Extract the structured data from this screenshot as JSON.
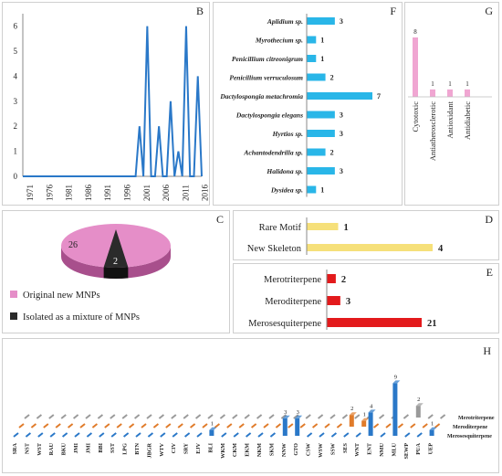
{
  "chart_data": [
    {
      "panel": "B",
      "type": "line",
      "x": [
        1971,
        1972,
        1973,
        1974,
        1975,
        1976,
        1977,
        1978,
        1979,
        1980,
        1981,
        1982,
        1983,
        1984,
        1985,
        1986,
        1987,
        1988,
        1989,
        1990,
        1991,
        1992,
        1993,
        1994,
        1995,
        1996,
        1997,
        1998,
        1999,
        2000,
        2001,
        2002,
        2003,
        2004,
        2005,
        2006,
        2007,
        2008,
        2009,
        2010,
        2011,
        2012,
        2013,
        2014,
        2015,
        2016,
        2017
      ],
      "values": [
        0,
        0,
        0,
        0,
        0,
        0,
        0,
        0,
        0,
        0,
        0,
        0,
        0,
        0,
        0,
        0,
        0,
        0,
        0,
        0,
        0,
        0,
        0,
        0,
        0,
        0,
        0,
        0,
        0,
        0,
        2,
        0,
        6,
        0,
        0,
        2,
        0,
        0,
        3,
        0,
        1,
        0,
        6,
        0,
        0,
        4,
        0
      ],
      "xticks": [
        "1971",
        "1976",
        "1981",
        "1986",
        "1991",
        "1996",
        "2001",
        "2006",
        "2011",
        "2016"
      ],
      "yticks": [
        "0",
        "1",
        "2",
        "3",
        "4",
        "5",
        "6"
      ],
      "ylim": [
        0,
        6.5
      ],
      "color": "#2a78c8"
    },
    {
      "panel": "F",
      "type": "bar",
      "orientation": "horizontal",
      "categories": [
        "Aplidium sp.",
        "Myrothecium sp.",
        "Penicillium citreonigrum",
        "Penicillium verruculosum",
        "Dactylospongia metachromia",
        "Dactylospongia elegans",
        "Hyrtios sp.",
        "Achantodendrilla sp.",
        "Halidona sp.",
        "Dysidea sp."
      ],
      "values": [
        3,
        1,
        1,
        2,
        7,
        3,
        3,
        2,
        3,
        1
      ],
      "color": "#29b6e8"
    },
    {
      "panel": "G",
      "type": "bar",
      "categories": [
        "Cytotoxic",
        "Antiatherosclerotic",
        "Antioxidant",
        "Antidiabetic"
      ],
      "values": [
        8,
        1,
        1,
        1
      ],
      "color": "#f0a6d2"
    },
    {
      "panel": "C",
      "type": "pie",
      "slices": [
        {
          "label": "Original new MNPs",
          "value": 26,
          "color": "#e58ec8"
        },
        {
          "label": "Isolated as a mixture of MNPs",
          "value": 2,
          "color": "#2b2b2b"
        }
      ]
    },
    {
      "panel": "D",
      "type": "bar",
      "orientation": "horizontal",
      "categories": [
        "Rare Motif",
        "New Skeleton"
      ],
      "values": [
        1,
        4
      ],
      "color": "#f6e07a"
    },
    {
      "panel": "E",
      "type": "bar",
      "orientation": "horizontal",
      "categories": [
        "Merotriterpene",
        "Meroditerpene",
        "Merosesquiterpene"
      ],
      "values": [
        2,
        3,
        21
      ],
      "color": "#e31a1c"
    },
    {
      "panel": "H",
      "type": "bar",
      "style": "3d",
      "categories": [
        "SRA",
        "NST",
        "WST",
        "RAU",
        "BKU",
        "JMI",
        "JMI",
        "BBI",
        "SST",
        "LPG",
        "BTN",
        "JBGR",
        "WTV",
        "CIV",
        "SRY",
        "EJV",
        "BLI",
        "WKM",
        "CKM",
        "EKM",
        "NKM",
        "SKM",
        "NNW",
        "GTO",
        "CSW",
        "WSW",
        "SSW",
        "SES",
        "WNT",
        "ENT",
        "NMU",
        "MLU",
        "SEWP",
        "PUA",
        "UEP"
      ],
      "series": [
        {
          "name": "Merosesquiterpene",
          "color": "#2a78c8",
          "values": [
            0,
            0,
            0,
            0,
            0,
            0,
            0,
            0,
            0,
            0,
            0,
            0,
            0,
            0,
            0,
            0,
            1,
            0,
            0,
            0,
            0,
            0,
            3,
            3,
            0,
            0,
            0,
            0,
            0,
            4,
            0,
            9,
            0,
            0,
            1
          ]
        },
        {
          "name": "Meroditerpene",
          "color": "#e07b2a",
          "values": [
            0,
            0,
            0,
            0,
            0,
            0,
            0,
            0,
            0,
            0,
            0,
            0,
            0,
            0,
            0,
            0,
            0,
            0,
            0,
            0,
            0,
            0,
            0,
            0,
            0,
            0,
            0,
            2,
            1,
            0,
            0,
            0,
            0,
            0,
            0
          ]
        },
        {
          "name": "Merotriterpene",
          "color": "#9a9a9a",
          "values": [
            0,
            0,
            0,
            0,
            0,
            0,
            0,
            0,
            0,
            0,
            0,
            0,
            0,
            0,
            0,
            0,
            0,
            0,
            0,
            0,
            0,
            0,
            0,
            0,
            0,
            0,
            0,
            0,
            0,
            0,
            0,
            0,
            2,
            0,
            0
          ]
        }
      ]
    }
  ],
  "labels": {
    "B": "B",
    "F": "F",
    "G": "G",
    "C": "C",
    "D": "D",
    "E": "E",
    "H": "H"
  }
}
